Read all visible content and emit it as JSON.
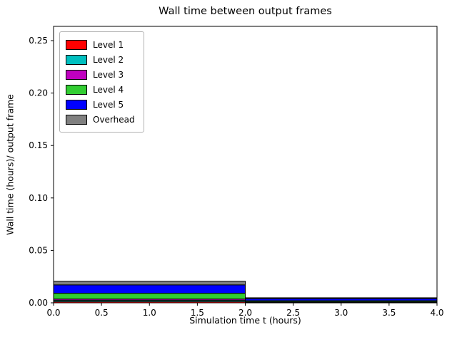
{
  "chart_data": {
    "type": "bar",
    "stacked": true,
    "title": "Wall time between output frames",
    "xlabel": "Simulation time t (hours)",
    "ylabel": "Wall time (hours)/ output frame",
    "xlim": [
      0,
      4
    ],
    "ylim": [
      0,
      0.2636
    ],
    "grid": false,
    "legend_position": "upper left",
    "xticks": [
      0.0,
      0.5,
      1.0,
      1.5,
      2.0,
      2.5,
      3.0,
      3.5,
      4.0
    ],
    "xtick_labels": [
      "0.0",
      "0.5",
      "1.0",
      "1.5",
      "2.0",
      "2.5",
      "3.0",
      "3.5",
      "4.0"
    ],
    "yticks": [
      0.0,
      0.05,
      0.1,
      0.15,
      0.2,
      0.25
    ],
    "ytick_labels": [
      "0.00",
      "0.05",
      "0.10",
      "0.15",
      "0.20",
      "0.25"
    ],
    "bar_edges": [
      0,
      2,
      4
    ],
    "series": [
      {
        "name": "Level 1",
        "color": "#ff0000",
        "values": [
          0.0012,
          0.0003
        ]
      },
      {
        "name": "Level 2",
        "color": "#00bfbf",
        "values": [
          0.0012,
          0.0003
        ]
      },
      {
        "name": "Level 3",
        "color": "#bf00bf",
        "values": [
          0.0012,
          0.0004
        ]
      },
      {
        "name": "Level 4",
        "color": "#32cd32",
        "values": [
          0.0055,
          0.001
        ]
      },
      {
        "name": "Level 5",
        "color": "#0000ff",
        "values": [
          0.008,
          0.002
        ]
      },
      {
        "name": "Overhead",
        "color": "#808080",
        "values": [
          0.0035,
          0.0008
        ]
      }
    ],
    "colors": {
      "axes": "#000000",
      "bar_edge": "#000000",
      "background": "#ffffff"
    }
  }
}
